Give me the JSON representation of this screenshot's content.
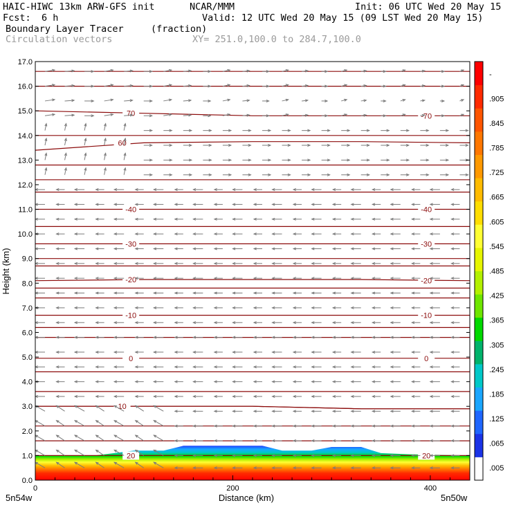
{
  "header": {
    "line1_left": "HAIC-HIWC 13km ARW-GFS init",
    "line1_mid": "NCAR/MMM",
    "line1_right": "Init: 06 UTC Wed 20 May 15",
    "fcst_label": "Fcst:",
    "fcst_value": "6 h",
    "valid": "Valid: 12 UTC Wed 20 May 15 (09 LST Wed 20 May 15)",
    "field_name": "Boundary Layer Tracer",
    "field_units": "(fraction)",
    "vectors_label": "Circulation vectors",
    "xy_range": "XY= 251.0,100.0 to 284.7,100.0"
  },
  "chart_data": {
    "type": "heatmap",
    "xlabel": "Distance (km)",
    "ylabel": "Height (km)",
    "xlim": [
      0,
      440
    ],
    "ylim": [
      0.0,
      17.0
    ],
    "x_ticks": [
      "0",
      "200",
      "400"
    ],
    "x_tick_values": [
      0,
      200,
      400
    ],
    "x_end_labels": {
      "left": "5n54w",
      "right": "5n50w"
    },
    "y_ticks": [
      "0.0",
      "1.0",
      "2.0",
      "3.0",
      "4.0",
      "5.0",
      "6.0",
      "7.0",
      "8.0",
      "9.0",
      "10.0",
      "11.0",
      "12.0",
      "13.0",
      "14.0",
      "15.0",
      "16.0",
      "17.0"
    ],
    "colorbar_labels": [
      ".005",
      ".065",
      ".125",
      ".185",
      ".245",
      ".305",
      ".365",
      ".425",
      ".485",
      ".545",
      ".605",
      ".665",
      ".725",
      ".785",
      ".845",
      ".905",
      "-"
    ],
    "colorbar_colors": [
      "#ffffff",
      "#1a33e6",
      "#1f66ff",
      "#1aa6ff",
      "#00c8c8",
      "#00b36b",
      "#00d900",
      "#6ee600",
      "#b3f000",
      "#e6f500",
      "#ffff33",
      "#ffdd00",
      "#ffbb00",
      "#ff9900",
      "#ff7700",
      "#ff5500",
      "#ff2a00",
      "#ff0000"
    ],
    "tracer_top_km": [
      [
        0,
        1.0
      ],
      [
        30,
        1.0
      ],
      [
        60,
        1.0
      ],
      [
        80,
        1.1
      ],
      [
        100,
        1.2
      ],
      [
        130,
        1.2
      ],
      [
        150,
        1.4
      ],
      [
        200,
        1.4
      ],
      [
        230,
        1.4
      ],
      [
        250,
        1.2
      ],
      [
        280,
        1.2
      ],
      [
        300,
        1.35
      ],
      [
        330,
        1.35
      ],
      [
        350,
        1.1
      ],
      [
        380,
        1.05
      ],
      [
        440,
        1.0
      ]
    ],
    "temperature_contours": [
      {
        "label": "70",
        "labels_shown": [
          "70",
          "-70"
        ],
        "y_km": [
          15.0,
          14.9,
          14.8,
          14.8,
          14.8
        ]
      },
      {
        "label": "60",
        "labels_shown": [
          "60"
        ],
        "y_km": [
          13.4,
          13.7,
          13.75,
          13.75,
          13.7
        ]
      },
      {
        "label": "40",
        "labels_shown": [
          "-40",
          "-40"
        ],
        "y_km": [
          11.0,
          11.0,
          11.0,
          11.0,
          11.0
        ]
      },
      {
        "label": "30",
        "labels_shown": [
          "-30",
          "-30"
        ],
        "y_km": [
          9.6,
          9.6,
          9.6,
          9.6,
          9.6
        ]
      },
      {
        "label": "20",
        "labels_shown": [
          "-20",
          "-20"
        ],
        "y_km": [
          8.1,
          8.15,
          8.15,
          8.15,
          8.1
        ]
      },
      {
        "label": "10",
        "labels_shown": [
          "-10",
          "-10"
        ],
        "y_km": [
          6.7,
          6.7,
          6.7,
          6.7,
          6.7
        ]
      },
      {
        "label": "0",
        "labels_shown": [
          "0",
          "0"
        ],
        "y_km": [
          4.95,
          4.95,
          4.95,
          4.95,
          4.95
        ]
      },
      {
        "label": "40",
        "labels_shown": [
          "40"
        ],
        "y_km": [
          3.0,
          3.0,
          3.0,
          2.9,
          2.9
        ]
      },
      {
        "label": "10",
        "labels_shown": [
          "10"
        ],
        "y_km": [
          3.0,
          3.0,
          3.0,
          2.9,
          2.9
        ]
      },
      {
        "label": "20",
        "labels_shown": [
          "20",
          "20"
        ],
        "y_km": [
          1.0,
          1.0,
          1.0,
          1.0,
          1.0
        ]
      }
    ],
    "extra_contours_km": [
      16.6,
      16.0,
      14.0,
      12.8,
      12.2,
      11.7,
      10.3,
      9.0,
      8.7,
      7.8,
      7.4,
      6.2,
      5.8,
      4.4,
      3.6,
      2.2,
      1.6
    ],
    "vector_rows_km": [
      16.6,
      16.0,
      15.4,
      14.8,
      14.2,
      13.6,
      13.0,
      12.4,
      11.8,
      11.2,
      10.6,
      10.0,
      9.4,
      8.8,
      8.2,
      7.6,
      7.0,
      6.4,
      5.8,
      5.2,
      4.6,
      4.0,
      3.4,
      2.8,
      2.2,
      1.6,
      1.0,
      0.5
    ],
    "vector_columns_km": [
      0,
      20,
      40,
      60,
      80,
      100,
      120,
      140,
      160,
      180,
      200,
      220,
      240,
      260,
      280,
      300,
      320,
      340,
      360,
      380,
      400,
      420
    ]
  }
}
